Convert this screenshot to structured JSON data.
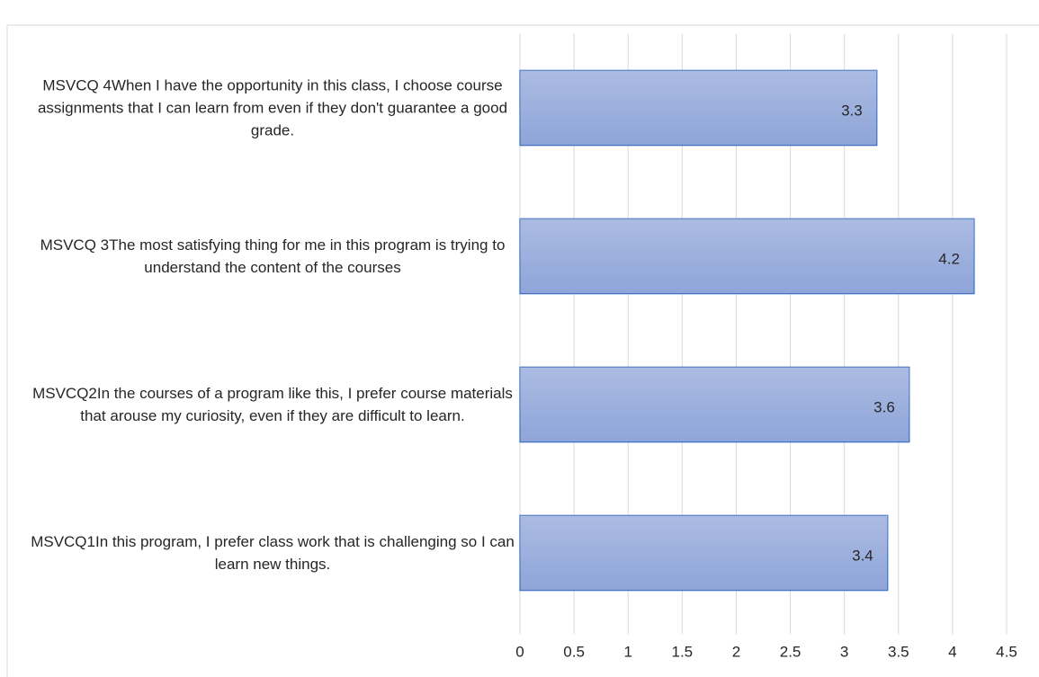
{
  "chart_data": {
    "type": "bar",
    "orientation": "horizontal",
    "categories": [
      "MSVCQ1In this program, I prefer class work that is challenging so I can learn new things.",
      "MSVCQ2In the courses of a program like this, I prefer course materials that arouse my curiosity, even if they are difficult to learn.",
      "MSVCQ 3The most satisfying thing for me in this program is trying to understand the content of the courses",
      "MSVCQ 4When I have the opportunity in this class, I choose course assignments that I can learn from even if they don't guarantee a good grade."
    ],
    "values": [
      3.4,
      3.6,
      4.2,
      3.3
    ],
    "color": "#8fa5d9",
    "xlim": [
      0,
      4.5
    ],
    "xticks": [
      0,
      0.5,
      1,
      1.5,
      2,
      2.5,
      3,
      3.5,
      4,
      4.5
    ],
    "grid": true
  }
}
